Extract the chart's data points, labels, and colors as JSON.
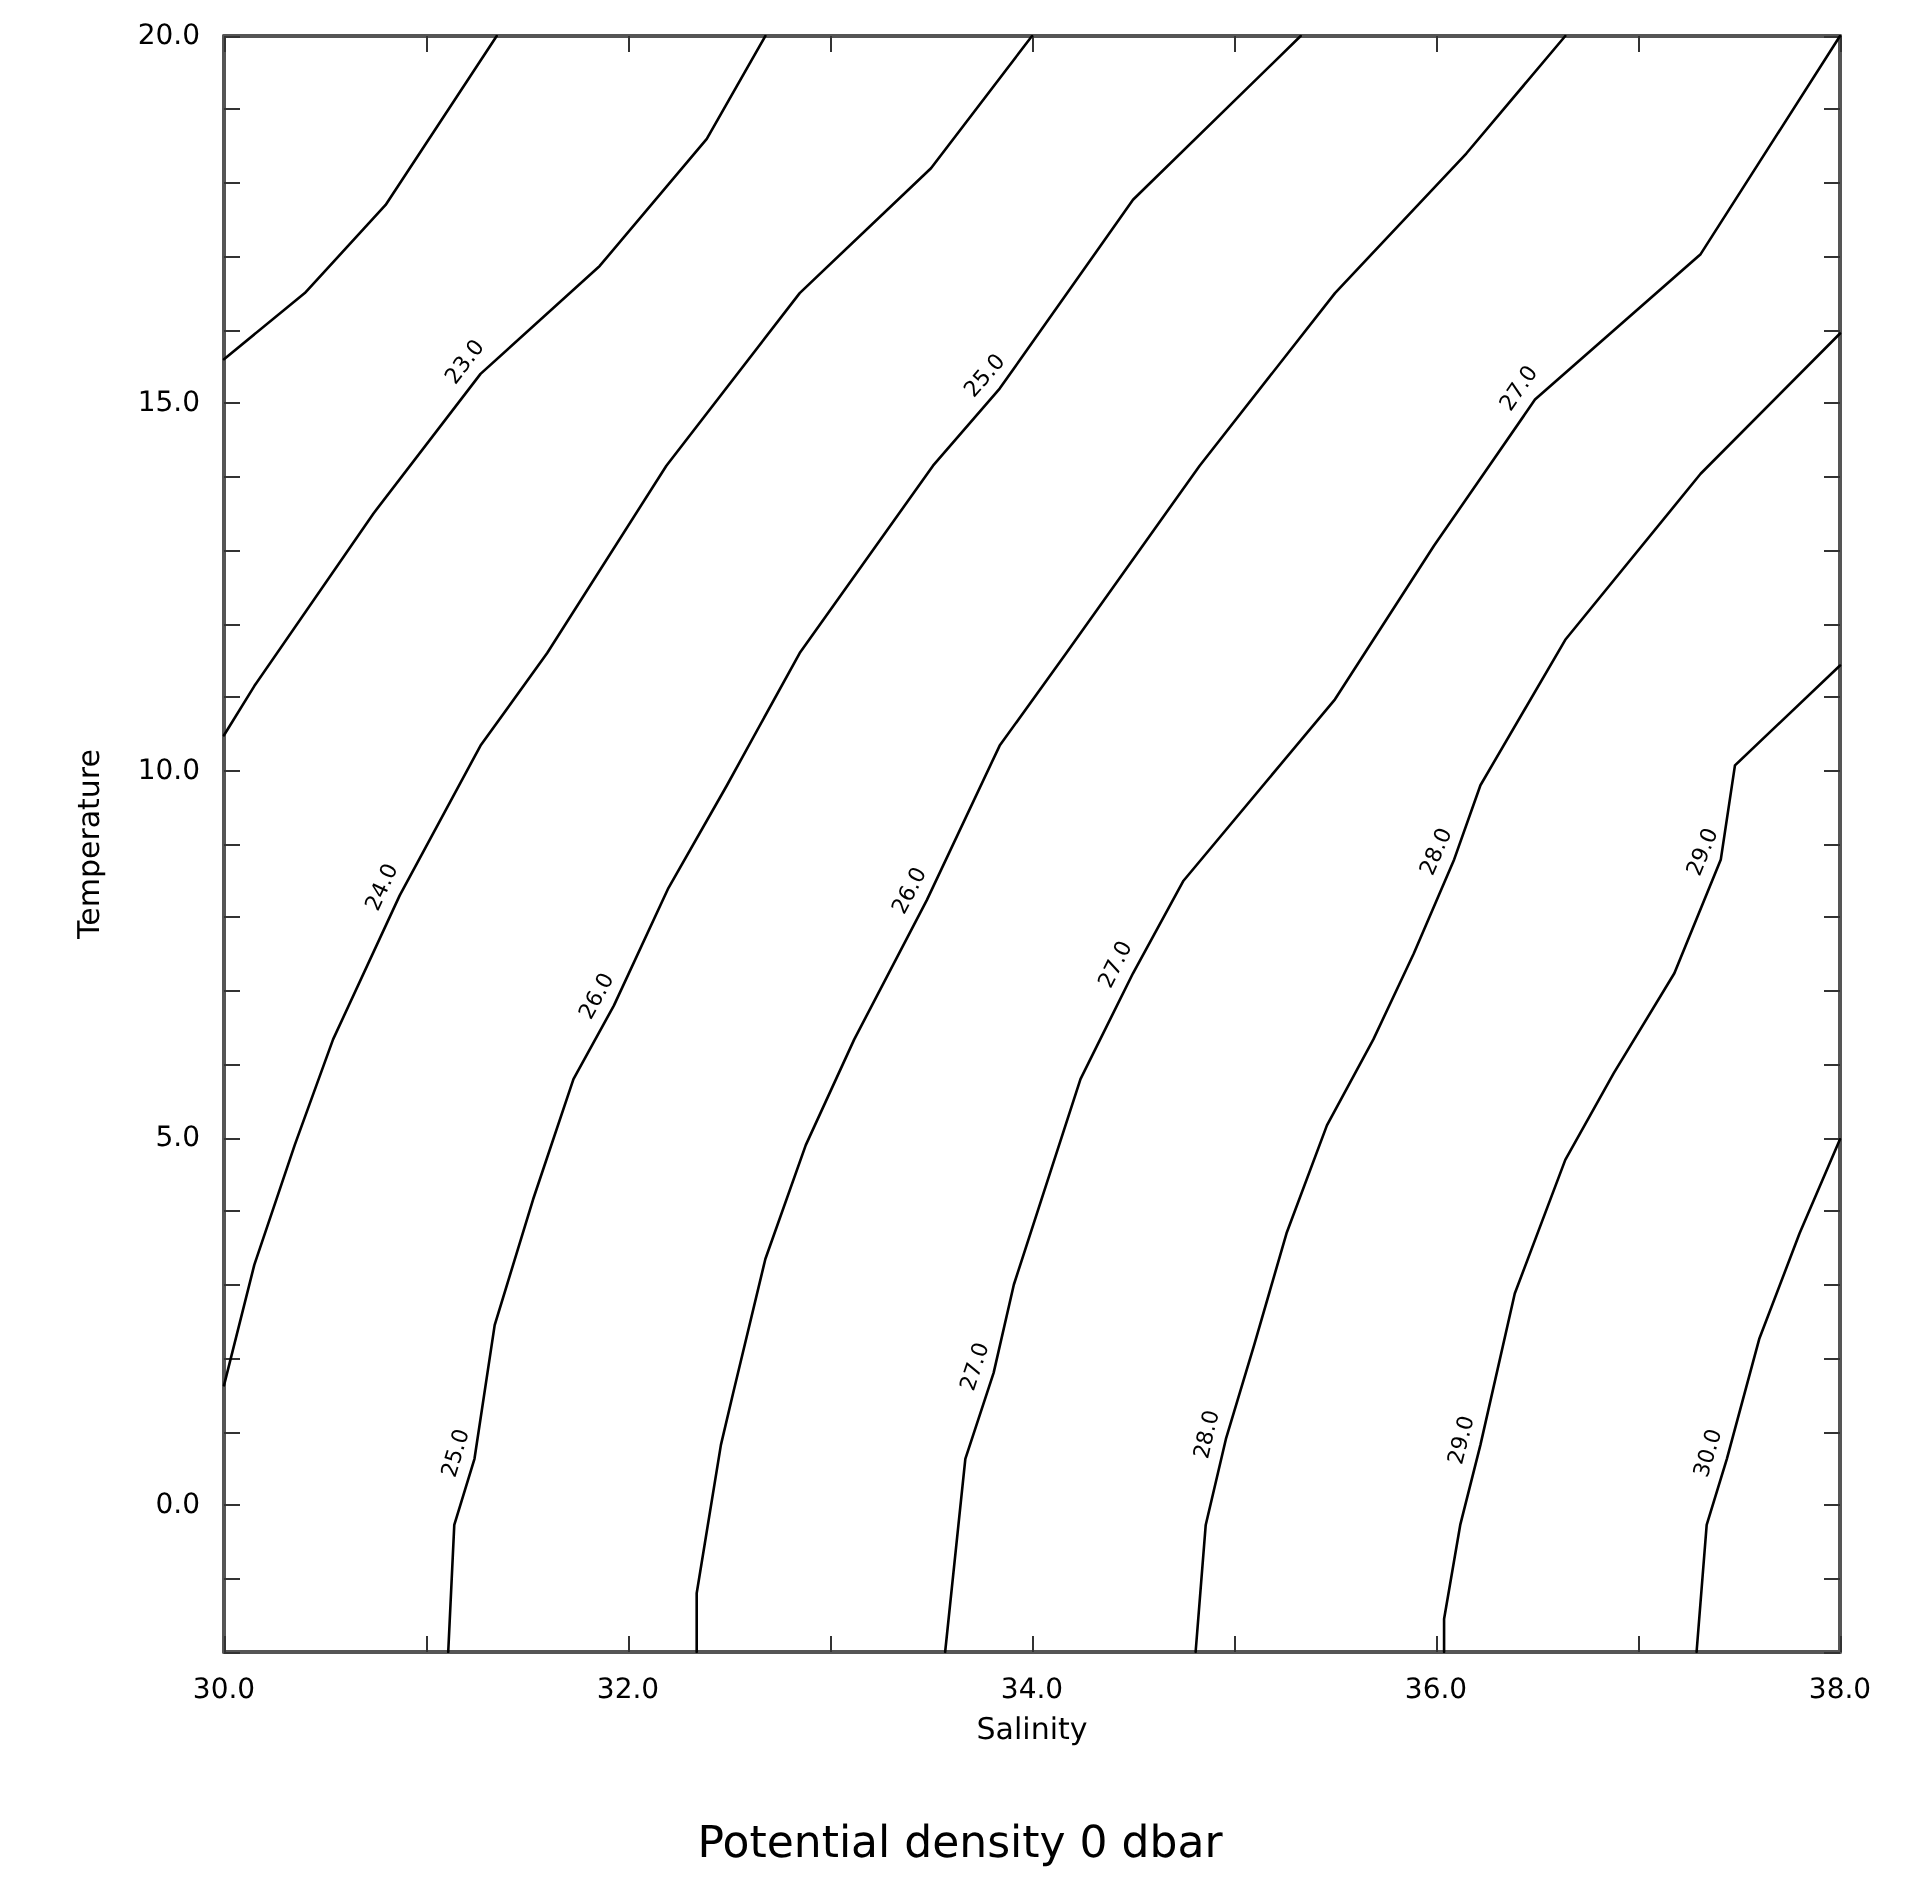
{
  "chart_data": {
    "type": "line",
    "title": "Potential density 0 dbar",
    "xlabel": "Salinity",
    "ylabel": "Temperature",
    "xlim": [
      30,
      38
    ],
    "ylim": [
      -2,
      20
    ],
    "xticks": [
      {
        "value": 30,
        "label": "30.0"
      },
      {
        "value": 31,
        "label": null
      },
      {
        "value": 32,
        "label": "32.0"
      },
      {
        "value": 33,
        "label": null
      },
      {
        "value": 34,
        "label": "34.0"
      },
      {
        "value": 35,
        "label": null
      },
      {
        "value": 36,
        "label": "36.0"
      },
      {
        "value": 37,
        "label": null
      },
      {
        "value": 38,
        "label": "38.0"
      }
    ],
    "yticks": [
      {
        "value": -2,
        "label": null
      },
      {
        "value": -1,
        "label": null
      },
      {
        "value": 0,
        "label": "0.0"
      },
      {
        "value": 1,
        "label": null
      },
      {
        "value": 2,
        "label": null
      },
      {
        "value": 3,
        "label": null
      },
      {
        "value": 4,
        "label": null
      },
      {
        "value": 5,
        "label": "5.0"
      },
      {
        "value": 6,
        "label": null
      },
      {
        "value": 7,
        "label": null
      },
      {
        "value": 8,
        "label": null
      },
      {
        "value": 9,
        "label": null
      },
      {
        "value": 10,
        "label": "10.0"
      },
      {
        "value": 11,
        "label": null
      },
      {
        "value": 12,
        "label": null
      },
      {
        "value": 13,
        "label": null
      },
      {
        "value": 14,
        "label": null
      },
      {
        "value": 15,
        "label": "15.0"
      },
      {
        "value": 16,
        "label": null
      },
      {
        "value": 17,
        "label": null
      },
      {
        "value": 18,
        "label": null
      },
      {
        "value": 19,
        "label": null
      },
      {
        "value": 20,
        "label": "20.0"
      }
    ],
    "grid": false,
    "marker": "none",
    "line_style": "solid",
    "series": [
      {
        "color": "#000000",
        "x": [
          30,
          30.4,
          30.8,
          31.35
        ],
        "values": [
          15.6,
          16.5,
          17.7,
          20
        ]
      },
      {
        "color": "#000000",
        "x": [
          30,
          30.15,
          30.74,
          31.27,
          31.86,
          32.39,
          32.68
        ],
        "values": [
          10.48,
          11.15,
          13.5,
          15.4,
          16.87,
          18.6,
          20
        ]
      },
      {
        "color": "#000000",
        "x": [
          30,
          30.15,
          30.35,
          30.54,
          30.87,
          31.27,
          31.6,
          32.19,
          32.85,
          33.5,
          34.0
        ],
        "values": [
          1.63,
          3.27,
          4.9,
          6.34,
          8.3,
          10.34,
          11.6,
          14.15,
          16.5,
          18.2,
          20
        ]
      },
      {
        "color": "#000000",
        "x": [
          31.11,
          31.14,
          31.24,
          31.34,
          31.53,
          31.73,
          31.93,
          32.2,
          32.49,
          32.85,
          33.51,
          33.84,
          34.5,
          35.33
        ],
        "values": [
          -2,
          -0.27,
          0.63,
          2.45,
          4.16,
          5.8,
          6.8,
          8.4,
          9.8,
          11.6,
          14.15,
          15.2,
          17.77,
          20
        ]
      },
      {
        "color": "#000000",
        "x": [
          32.34,
          32.34,
          32.46,
          32.52,
          32.68,
          32.88,
          33.12,
          33.48,
          33.84,
          34.17,
          34.83,
          35.5,
          36.15,
          36.64
        ],
        "values": [
          -2,
          -1.2,
          0.82,
          1.52,
          3.35,
          4.9,
          6.34,
          8.24,
          10.34,
          11.6,
          14.15,
          16.5,
          18.4,
          20
        ]
      },
      {
        "color": "#000000",
        "x": [
          33.57,
          33.67,
          33.81,
          33.91,
          34.24,
          34.5,
          34.75,
          35.5,
          35.99,
          36.49,
          37.31,
          38
        ],
        "values": [
          -2,
          0.63,
          1.8,
          3.0,
          5.8,
          7.24,
          8.5,
          10.97,
          13.06,
          15.05,
          17.03,
          20
        ]
      },
      {
        "color": "#000000",
        "x": [
          34.81,
          34.86,
          34.96,
          35.1,
          35.26,
          35.46,
          35.69,
          35.89,
          36.09,
          36.22,
          36.64,
          37.31,
          38
        ],
        "values": [
          -2,
          -0.27,
          0.9,
          2.18,
          3.7,
          5.17,
          6.34,
          7.51,
          8.79,
          9.8,
          11.78,
          14.04,
          15.95
        ]
      },
      {
        "color": "#000000",
        "x": [
          36.04,
          36.04,
          36.12,
          36.22,
          36.39,
          36.64,
          36.88,
          37.18,
          37.41,
          37.48,
          38
        ],
        "values": [
          -2,
          -1.55,
          -0.27,
          0.82,
          2.88,
          4.7,
          5.88,
          7.24,
          8.79,
          10.07,
          11.43
        ]
      },
      {
        "color": "#000000",
        "x": [
          37.29,
          37.34,
          37.44,
          37.6,
          37.8,
          38
        ],
        "values": [
          -2,
          -0.27,
          0.63,
          2.26,
          3.7,
          4.98
        ]
      }
    ],
    "annotations": [
      {
        "text": "23.0",
        "x": 31.27,
        "y": 15.4
      },
      {
        "text": "24.0",
        "x": 30.87,
        "y": 8.3
      },
      {
        "text": "25.0",
        "x": 31.24,
        "y": 0.63
      },
      {
        "text": "26.0",
        "x": 31.93,
        "y": 6.8
      },
      {
        "text": "25.0",
        "x": 33.84,
        "y": 15.2
      },
      {
        "text": "26.0",
        "x": 33.48,
        "y": 8.24
      },
      {
        "text": "27.0",
        "x": 33.81,
        "y": 1.8
      },
      {
        "text": "27.0",
        "x": 34.5,
        "y": 7.24
      },
      {
        "text": "27.0",
        "x": 36.49,
        "y": 15.05
      },
      {
        "text": "28.0",
        "x": 34.96,
        "y": 0.9
      },
      {
        "text": "28.0",
        "x": 36.09,
        "y": 8.79
      },
      {
        "text": "29.0",
        "x": 36.22,
        "y": 0.82
      },
      {
        "text": "29.0",
        "x": 37.41,
        "y": 8.79
      },
      {
        "text": "30.0",
        "x": 37.44,
        "y": 0.63
      }
    ]
  }
}
